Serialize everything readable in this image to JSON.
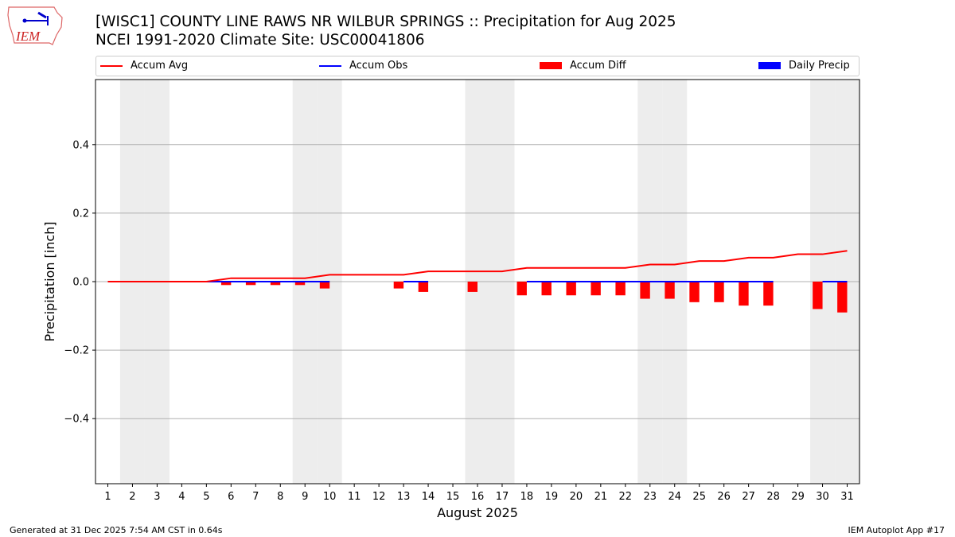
{
  "header": {
    "title": "[WISC1] COUNTY LINE RAWS NR WILBUR SPRINGS :: Precipitation for Aug 2025",
    "subtitle": "NCEI 1991-2020 Climate Site: USC00041806",
    "logo_text": "IEM"
  },
  "footer": {
    "left": "Generated at 31 Dec 2025 7:54 AM CST in 0.64s",
    "right": "IEM Autoplot App #17"
  },
  "colors": {
    "avg": "#ff0000",
    "obs": "#0000ff",
    "diff": "#ff0000",
    "daily": "#0000ff",
    "weekend": "#ededed",
    "grid": "#b0b0b0"
  },
  "chart_data": {
    "type": "bar",
    "xlabel": "August 2025",
    "ylabel": "Precipitation [inch]",
    "xlim": [
      0.5,
      31.5
    ],
    "ylim": [
      -0.59,
      0.59
    ],
    "yticks": [
      -0.4,
      -0.2,
      0.0,
      0.2,
      0.4
    ],
    "ytick_labels": [
      "−0.4",
      "−0.2",
      "0.0",
      "0.2",
      "0.4"
    ],
    "grid": true,
    "legend": "top",
    "legend_entries": [
      "Accum Avg",
      "Accum Obs",
      "Accum Diff",
      "Daily Precip"
    ],
    "weekend_days": [
      2,
      3,
      9,
      10,
      16,
      17,
      23,
      24,
      30,
      31
    ],
    "x": [
      1,
      2,
      3,
      4,
      5,
      6,
      7,
      8,
      9,
      10,
      11,
      12,
      13,
      14,
      15,
      16,
      17,
      18,
      19,
      20,
      21,
      22,
      23,
      24,
      25,
      26,
      27,
      28,
      29,
      30,
      31
    ],
    "series": [
      {
        "name": "Accum Avg",
        "type": "line",
        "values": [
          0,
          0,
          0,
          0,
          0,
          0.01,
          0.01,
          0.01,
          0.01,
          0.02,
          0.02,
          0.02,
          0.02,
          0.03,
          0.03,
          0.03,
          0.03,
          0.04,
          0.04,
          0.04,
          0.04,
          0.04,
          0.05,
          0.05,
          0.06,
          0.06,
          0.07,
          0.07,
          0.08,
          0.08,
          0.09
        ]
      },
      {
        "name": "Accum Obs",
        "type": "line",
        "values": [
          0,
          0,
          0,
          0,
          0,
          0,
          0,
          0,
          0,
          0,
          null,
          null,
          0,
          0,
          null,
          null,
          null,
          0,
          0,
          0,
          0,
          0,
          0,
          0,
          0,
          0,
          0,
          0,
          null,
          0,
          0
        ]
      },
      {
        "name": "Accum Diff",
        "type": "bar",
        "values": [
          0,
          0,
          0,
          0,
          0,
          -0.01,
          -0.01,
          -0.01,
          -0.01,
          -0.02,
          null,
          null,
          -0.02,
          -0.03,
          null,
          -0.03,
          null,
          -0.04,
          -0.04,
          -0.04,
          -0.04,
          -0.04,
          -0.05,
          -0.05,
          -0.06,
          -0.06,
          -0.07,
          -0.07,
          null,
          -0.08,
          -0.09
        ]
      },
      {
        "name": "Daily Precip",
        "type": "bar",
        "values": [
          0,
          0,
          0,
          0,
          0,
          0,
          0,
          0,
          0,
          0,
          null,
          null,
          0,
          0,
          null,
          null,
          null,
          0,
          0,
          0,
          0,
          0,
          0,
          0,
          0,
          0,
          0,
          0,
          null,
          0,
          0
        ]
      }
    ]
  }
}
